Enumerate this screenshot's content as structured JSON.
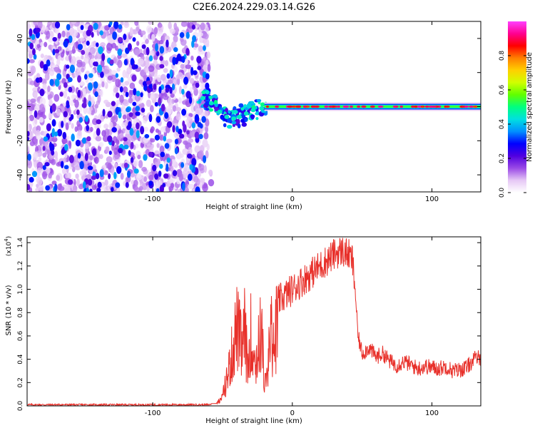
{
  "title": "C2E6.2024.229.03.14.G26",
  "chart_data": [
    {
      "type": "heatmap",
      "xlabel": "Height of straight line (km)",
      "ylabel": "Frequency (Hz)",
      "xlim": [
        -190,
        135
      ],
      "ylim": [
        -50,
        50
      ],
      "xticks": [
        -100,
        0,
        100
      ],
      "yticks": [
        -40,
        -20,
        0,
        20,
        40
      ],
      "grid": false,
      "noise_region_x": [
        -190,
        -60
      ],
      "transition_region_x": [
        -65,
        -20
      ],
      "signal_line": {
        "y": 0,
        "x": [
          -20,
          135
        ]
      },
      "signal_track": [
        {
          "x": -64,
          "y": 5
        },
        {
          "x": -58,
          "y": 2
        },
        {
          "x": -52,
          "y": -3
        },
        {
          "x": -47,
          "y": -6
        },
        {
          "x": -42,
          "y": -7
        },
        {
          "x": -38,
          "y": -6
        },
        {
          "x": -33,
          "y": -4
        },
        {
          "x": -28,
          "y": -2
        },
        {
          "x": -22,
          "y": -1
        }
      ],
      "colorbar": {
        "label": "Normalized spectral amplitude",
        "ticks": [
          "0.0",
          "0.2",
          "0.4",
          "0.6",
          "0.8"
        ],
        "range": [
          0,
          1
        ],
        "stops": [
          "#ffffff",
          "#e6c8f5",
          "#9a4ae6",
          "#5000e0",
          "#0000ff",
          "#0090ff",
          "#00e0e0",
          "#00ff80",
          "#60ff00",
          "#d0ff00",
          "#ffd000",
          "#ff8000",
          "#ff0000",
          "#ff0090",
          "#ff40ff"
        ]
      }
    },
    {
      "type": "line",
      "xlabel": "Height of straight line (km)",
      "ylabel": "SNR (10 * v/v)",
      "ylabel_multiplier": "(x10",
      "ylabel_multiplier_exp": "4",
      "ylabel_multiplier_close": ")",
      "xlim": [
        -190,
        135
      ],
      "ylim": [
        0,
        1.45
      ],
      "xticks": [
        -100,
        0,
        100
      ],
      "yticks": [
        "0.0",
        "0.2",
        "0.4",
        "0.6",
        "0.8",
        "1.0",
        "1.2",
        "1.4"
      ],
      "color": "#e8302a",
      "series": [
        {
          "x": [
            -190,
            -170,
            -150,
            -130,
            -110,
            -90,
            -70,
            -60,
            -55,
            -50,
            -45,
            -42,
            -40,
            -38,
            -36,
            -34,
            -32,
            -30,
            -28,
            -26,
            -24,
            -22,
            -20,
            -18,
            -16,
            -14,
            -12,
            -10,
            -5,
            0,
            5,
            10,
            15,
            20,
            25,
            30,
            35,
            40,
            43,
            45,
            47,
            50,
            55,
            60,
            65,
            70,
            75,
            80,
            85,
            90,
            95,
            100,
            105,
            110,
            115,
            120,
            125,
            130,
            135
          ],
          "values": [
            0.01,
            0.01,
            0.01,
            0.01,
            0.01,
            0.01,
            0.01,
            0.01,
            0.02,
            0.1,
            0.45,
            0.7,
            0.9,
            0.8,
            0.6,
            0.9,
            0.4,
            0.85,
            0.6,
            0.5,
            0.7,
            0.9,
            0.25,
            0.3,
            0.85,
            0.75,
            0.9,
            0.9,
            0.95,
            1.0,
            1.05,
            1.1,
            1.15,
            1.2,
            1.25,
            1.3,
            1.33,
            1.3,
            1.25,
            1.0,
            0.6,
            0.45,
            0.5,
            0.42,
            0.45,
            0.38,
            0.35,
            0.38,
            0.35,
            0.32,
            0.34,
            0.33,
            0.32,
            0.34,
            0.3,
            0.31,
            0.33,
            0.4,
            0.42
          ]
        }
      ]
    }
  ]
}
